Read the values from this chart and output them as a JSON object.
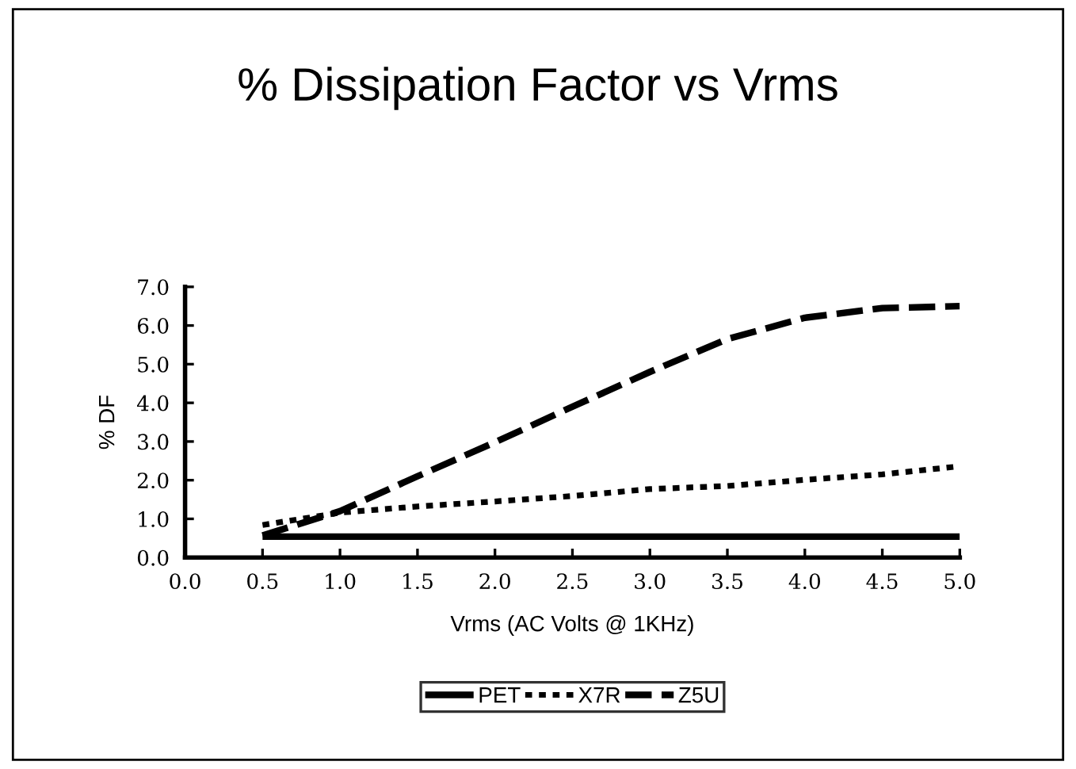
{
  "chart_data": {
    "type": "line",
    "title": "% Dissipation Factor vs Vrms",
    "xlabel": "Vrms (AC Volts @ 1KHz)",
    "ylabel": "% DF",
    "x": [
      0.5,
      1.0,
      1.5,
      2.0,
      2.5,
      3.0,
      3.5,
      4.0,
      4.5,
      5.0
    ],
    "series": [
      {
        "name": "PET",
        "color": "#000000",
        "line_style": "solid",
        "values": [
          0.54,
          0.54,
          0.54,
          0.54,
          0.54,
          0.54,
          0.54,
          0.54,
          0.54,
          0.54
        ]
      },
      {
        "name": "X7R",
        "color": "#000000",
        "line_style": "dotted",
        "values": [
          0.84,
          1.16,
          1.32,
          1.45,
          1.59,
          1.77,
          1.85,
          2.01,
          2.15,
          2.36
        ]
      },
      {
        "name": "Z5U",
        "color": "#000000",
        "line_style": "dashed",
        "values": [
          0.57,
          1.2,
          2.1,
          2.98,
          3.9,
          4.8,
          5.65,
          6.2,
          6.45,
          6.5
        ]
      }
    ],
    "xlim": [
      0.0,
      5.0
    ],
    "ylim": [
      0.0,
      7.0
    ],
    "xticks": [
      {
        "value": 0,
        "label": "0.0"
      },
      {
        "value": 0.5,
        "label": "0.5"
      },
      {
        "value": 1,
        "label": "1.0"
      },
      {
        "value": 1.5,
        "label": "1.5"
      },
      {
        "value": 2,
        "label": "2.0"
      },
      {
        "value": 2.5,
        "label": "2.5"
      },
      {
        "value": 3,
        "label": "3.0"
      },
      {
        "value": 3.5,
        "label": "3.5"
      },
      {
        "value": 4,
        "label": "4.0"
      },
      {
        "value": 4.5,
        "label": "4.5"
      },
      {
        "value": 5,
        "label": "5.0"
      }
    ],
    "yticks": [
      {
        "value": 0,
        "label": "0.0"
      },
      {
        "value": 1,
        "label": "1.0"
      },
      {
        "value": 2,
        "label": "2.0"
      },
      {
        "value": 3,
        "label": "3.0"
      },
      {
        "value": 4,
        "label": "4.0"
      },
      {
        "value": 5,
        "label": "5.0"
      },
      {
        "value": 6,
        "label": "6.0"
      },
      {
        "value": 7,
        "label": "7.0"
      }
    ],
    "grid": false,
    "legend": "bottom",
    "marker": "none"
  }
}
